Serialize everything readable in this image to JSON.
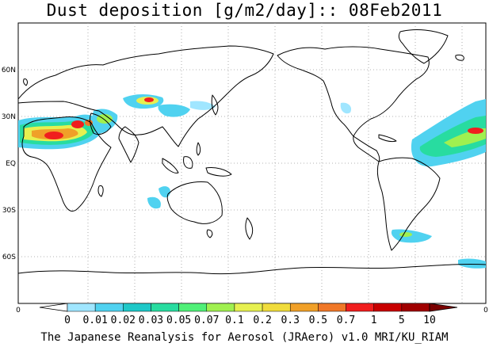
{
  "title": "Dust deposition [g/m2/day]:: 08Feb2011",
  "footer": "The Japanese Reanalysis for Aerosol (JRAero) v1.0 MRI/KU_RIAM",
  "lat_labels": [
    "60N",
    "30N",
    "EQ",
    "30S",
    "60S"
  ],
  "axis": {
    "left": "0",
    "right": "0"
  },
  "colorbar": {
    "labels": [
      "0",
      "0.01",
      "0.02",
      "0.03",
      "0.05",
      "0.07",
      "0.1",
      "0.2",
      "0.3",
      "0.5",
      "0.7",
      "1",
      "5",
      "10"
    ],
    "colors": [
      "#ffffff",
      "#a0e6ff",
      "#50d2f0",
      "#1ec8c8",
      "#28dca0",
      "#50f078",
      "#a0f050",
      "#e6f050",
      "#f0dc3c",
      "#f0a028",
      "#f07828",
      "#f01e1e",
      "#c80000",
      "#a00000",
      "#7a0000"
    ]
  },
  "chart_data": {
    "type": "map",
    "title": "Dust deposition [g/m2/day]:: 08Feb2011",
    "source": "The Japanese Reanalysis for Aerosol (JRAero) v1.0 MRI/KU_RIAM",
    "units": "g/m2/day",
    "date": "08Feb2011",
    "color_levels": [
      0,
      0.01,
      0.02,
      0.03,
      0.05,
      0.07,
      0.1,
      0.2,
      0.3,
      0.5,
      0.7,
      1,
      5,
      10
    ]
  }
}
